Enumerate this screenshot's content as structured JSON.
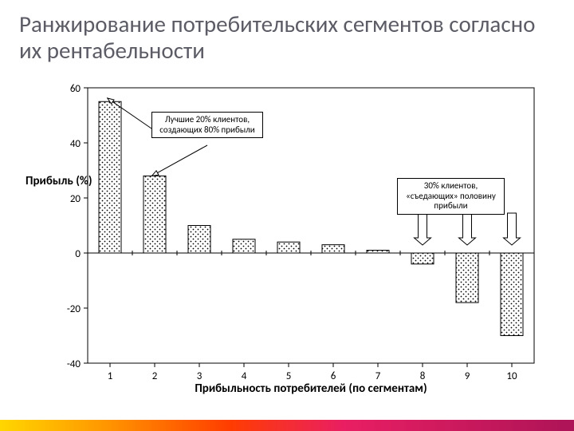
{
  "title": "Ранжирование потребительских сегментов согласно их рентабельности",
  "y_axis_label": "Прибыль (%)",
  "x_axis_title": "Прибыльность потребителей (по сегментам)",
  "callouts": {
    "top20": "Лучшие 20% клиентов, создающих 80% прибыли",
    "bottom30": "30% клиентов, «съедающих» половину прибыли"
  },
  "chart": {
    "type": "bar",
    "categories": [
      "1",
      "2",
      "3",
      "4",
      "5",
      "6",
      "7",
      "8",
      "9",
      "10"
    ],
    "values": [
      55,
      28,
      10,
      5,
      4,
      3,
      1,
      -4,
      -18,
      -30
    ],
    "bar_fill": "#ffffff",
    "bar_border": "#000000",
    "bar_pattern": "dots",
    "pattern_dot_color": "#000000",
    "ylim": [
      -40,
      60
    ],
    "ytick_step": 20,
    "xlim": [
      0.5,
      10.5
    ],
    "grid": false,
    "background_color": "#ffffff",
    "axis_color": "#000000",
    "bar_width": 0.5,
    "tick_font_size": 13,
    "arrows": {
      "top20_targets": [
        1,
        2
      ],
      "bottom30_targets": [
        8,
        9,
        10
      ]
    }
  }
}
